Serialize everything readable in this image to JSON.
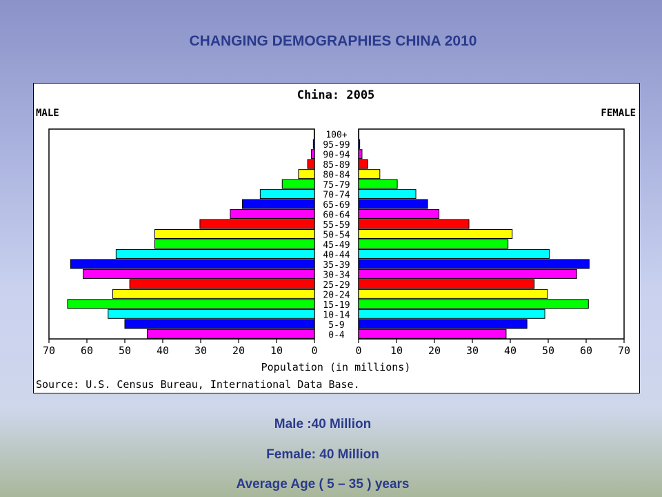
{
  "slide": {
    "title": "CHANGING DEMOGRAPHIES  CHINA 2010",
    "captions": [
      "Male :40 Million",
      "Female: 40 Million",
      "Average Age ( 5 – 35 ) years"
    ]
  },
  "chart_data": {
    "type": "bar",
    "title": "China: 2005",
    "left_label": "MALE",
    "right_label": "FEMALE",
    "xlabel": "Population (in millions)",
    "source": "Source: U.S. Census Bureau, International Data Base.",
    "xlim": [
      0,
      70
    ],
    "xticks": [
      70,
      60,
      50,
      40,
      30,
      20,
      10,
      0
    ],
    "grid": false,
    "categories": [
      "100+",
      "95-99",
      "90-94",
      "85-89",
      "80-84",
      "75-79",
      "70-74",
      "65-69",
      "60-64",
      "55-59",
      "50-54",
      "45-49",
      "40-44",
      "35-39",
      "30-34",
      "25-29",
      "20-24",
      "15-19",
      "10-14",
      "5-9",
      "0-4"
    ],
    "series": [
      {
        "name": "MALE",
        "values": [
          0.1,
          0.3,
          0.8,
          1.8,
          4.2,
          8.5,
          14.3,
          19,
          22.2,
          30.2,
          42.1,
          42.1,
          52.3,
          64.3,
          61,
          48.7,
          53.2,
          65.1,
          54.4,
          50,
          44.1
        ]
      },
      {
        "name": "FEMALE",
        "values": [
          0.1,
          0.3,
          0.9,
          2.4,
          5.6,
          10.2,
          15.1,
          18.2,
          21.2,
          29.1,
          40.5,
          39.4,
          50.3,
          60.8,
          57.5,
          46.3,
          49.8,
          60.6,
          49.1,
          44.4,
          38.9
        ]
      }
    ],
    "bar_colors": [
      "#ff00ff",
      "#0000ff",
      "#00ffff",
      "#00ff00",
      "#ffff00",
      "#ff0000"
    ]
  }
}
